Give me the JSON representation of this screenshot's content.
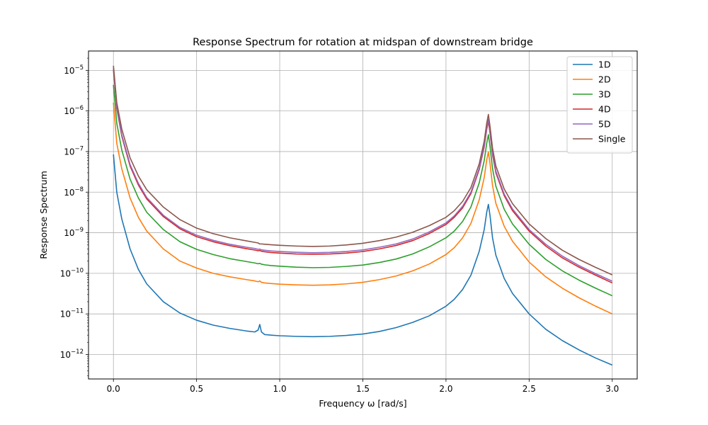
{
  "chart_data": {
    "type": "line",
    "title": "Response Spectrum for rotation at midspan of downstream bridge",
    "xlabel": "Frequency ω [rad/s]",
    "ylabel": "Response Spectrum",
    "xlim": [
      -0.15,
      3.15
    ],
    "ylim": [
      2.5e-13,
      3e-05
    ],
    "yscale": "log",
    "grid": true,
    "legend_position": "top-right",
    "x_ticks": [
      {
        "value": 0.0,
        "label": "0.0"
      },
      {
        "value": 0.5,
        "label": "0.5"
      },
      {
        "value": 1.0,
        "label": "1.0"
      },
      {
        "value": 1.5,
        "label": "1.5"
      },
      {
        "value": 2.0,
        "label": "2.0"
      },
      {
        "value": 2.5,
        "label": "2.5"
      },
      {
        "value": 3.0,
        "label": "3.0"
      }
    ],
    "y_ticks": [
      {
        "value": 1e-12,
        "base": "10",
        "exp": "−12"
      },
      {
        "value": 1e-11,
        "base": "10",
        "exp": "−11"
      },
      {
        "value": 1e-10,
        "base": "10",
        "exp": "−10"
      },
      {
        "value": 1e-09,
        "base": "10",
        "exp": "−9"
      },
      {
        "value": 1e-08,
        "base": "10",
        "exp": "−8"
      },
      {
        "value": 1e-07,
        "base": "10",
        "exp": "−7"
      },
      {
        "value": 1e-06,
        "base": "10",
        "exp": "−6"
      },
      {
        "value": 1e-05,
        "base": "10",
        "exp": "−5"
      }
    ],
    "x": [
      0.0,
      0.02,
      0.05,
      0.1,
      0.15,
      0.2,
      0.3,
      0.4,
      0.5,
      0.6,
      0.7,
      0.8,
      0.85,
      0.87,
      0.88,
      0.89,
      0.91,
      0.95,
      1.0,
      1.1,
      1.2,
      1.3,
      1.4,
      1.5,
      1.6,
      1.7,
      1.8,
      1.9,
      2.0,
      2.05,
      2.1,
      2.15,
      2.2,
      2.23,
      2.245,
      2.255,
      2.265,
      2.28,
      2.3,
      2.35,
      2.4,
      2.5,
      2.6,
      2.7,
      2.8,
      2.9,
      3.0
    ],
    "series": [
      {
        "name": "1D",
        "color": "#1f77b4",
        "values": [
          8.5e-08,
          1e-08,
          2.2e-09,
          4e-10,
          1.25e-10,
          5.5e-11,
          2e-11,
          1.05e-11,
          7e-12,
          5.3e-12,
          4.4e-12,
          3.8e-12,
          3.6e-12,
          4e-12,
          5.5e-12,
          3.6e-12,
          3.1e-12,
          3e-12,
          2.9e-12,
          2.8e-12,
          2.75e-12,
          2.8e-12,
          2.95e-12,
          3.2e-12,
          3.7e-12,
          4.6e-12,
          6.2e-12,
          9e-12,
          1.55e-11,
          2.3e-11,
          4e-11,
          9e-11,
          3.5e-10,
          1.2e-09,
          3.2e-09,
          5e-09,
          2.6e-09,
          7.5e-10,
          2.8e-10,
          7.5e-11,
          3.2e-11,
          1e-11,
          4.2e-12,
          2.2e-12,
          1.3e-12,
          8.2e-13,
          5.5e-13
        ]
      },
      {
        "name": "2D",
        "color": "#ff7f0e",
        "values": [
          1.6e-06,
          1.6e-07,
          3.8e-08,
          7.2e-09,
          2.4e-09,
          1.1e-09,
          4e-10,
          2e-10,
          1.35e-10,
          1e-10,
          8.2e-11,
          7e-11,
          6.5e-11,
          6.2e-11,
          6.5e-11,
          6e-11,
          5.8e-11,
          5.6e-11,
          5.4e-11,
          5.2e-11,
          5.1e-11,
          5.2e-11,
          5.5e-11,
          6e-11,
          7e-11,
          8.6e-11,
          1.15e-10,
          1.7e-10,
          2.9e-10,
          4.3e-10,
          7.5e-10,
          1.7e-09,
          6.5e-09,
          2.3e-08,
          6.2e-08,
          9.8e-08,
          5e-08,
          1.45e-08,
          5.3e-09,
          1.45e-09,
          6.2e-10,
          1.9e-10,
          8.2e-11,
          4.3e-11,
          2.5e-11,
          1.55e-11,
          1e-11
        ]
      },
      {
        "name": "3D",
        "color": "#2ca02c",
        "values": [
          4.4e-06,
          5e-07,
          1.1e-07,
          2.1e-08,
          7.2e-09,
          3.2e-09,
          1.2e-09,
          6e-10,
          3.9e-10,
          2.9e-10,
          2.3e-10,
          1.95e-10,
          1.8e-10,
          1.72e-10,
          1.76e-10,
          1.68e-10,
          1.62e-10,
          1.55e-10,
          1.5e-10,
          1.42e-10,
          1.38e-10,
          1.4e-10,
          1.48e-10,
          1.6e-10,
          1.85e-10,
          2.25e-10,
          3e-10,
          4.5e-10,
          7.5e-10,
          1.1e-09,
          1.9e-09,
          4.3e-09,
          1.7e-08,
          6e-08,
          1.6e-07,
          2.6e-07,
          1.3e-07,
          3.8e-08,
          1.4e-08,
          3.8e-09,
          1.65e-09,
          5.2e-10,
          2.2e-10,
          1.15e-10,
          6.8e-11,
          4.3e-11,
          2.8e-11
        ]
      },
      {
        "name": "4D",
        "color": "#d62728",
        "values": [
          1.05e-05,
          1.15e-06,
          2.4e-07,
          4.4e-08,
          1.5e-08,
          6.8e-09,
          2.5e-09,
          1.25e-09,
          8e-10,
          6e-10,
          4.8e-10,
          4.05e-10,
          3.75e-10,
          3.6e-10,
          3.65e-10,
          3.5e-10,
          3.4e-10,
          3.25e-10,
          3.15e-10,
          3e-10,
          2.95e-10,
          3e-10,
          3.15e-10,
          3.45e-10,
          4e-10,
          4.85e-10,
          6.4e-10,
          9.6e-10,
          1.6e-09,
          2.4e-09,
          4.1e-09,
          9.2e-09,
          3.6e-08,
          1.3e-07,
          3.5e-07,
          5.6e-07,
          2.8e-07,
          8.2e-08,
          3e-08,
          8.2e-09,
          3.5e-09,
          1.1e-09,
          4.7e-10,
          2.4e-10,
          1.42e-10,
          9e-11,
          5.8e-11
        ]
      },
      {
        "name": "5D",
        "color": "#9467bd",
        "values": [
          1.15e-05,
          1.25e-06,
          2.6e-07,
          4.8e-08,
          1.65e-08,
          7.4e-09,
          2.7e-09,
          1.35e-09,
          8.7e-10,
          6.5e-10,
          5.2e-10,
          4.4e-10,
          4.1e-10,
          3.9e-10,
          3.95e-10,
          3.8e-10,
          3.7e-10,
          3.55e-10,
          3.45e-10,
          3.3e-10,
          3.22e-10,
          3.28e-10,
          3.45e-10,
          3.78e-10,
          4.4e-10,
          5.3e-10,
          7e-10,
          1.05e-09,
          1.75e-09,
          2.6e-09,
          4.5e-09,
          1e-08,
          3.9e-08,
          1.4e-07,
          3.8e-07,
          6.2e-07,
          3.1e-07,
          9e-08,
          3.3e-08,
          9e-09,
          3.85e-09,
          1.2e-09,
          5.2e-10,
          2.65e-10,
          1.55e-10,
          9.8e-11,
          6.4e-11
        ]
      },
      {
        "name": "Single",
        "color": "#8c564b",
        "values": [
          1.3e-05,
          1.6e-06,
          3.6e-07,
          7e-08,
          2.5e-08,
          1.15e-08,
          4.3e-09,
          2.1e-09,
          1.3e-09,
          9.5e-10,
          7.5e-10,
          6.3e-10,
          5.8e-10,
          5.6e-10,
          5.3e-10,
          5.3e-10,
          5.2e-10,
          5.05e-10,
          4.9e-10,
          4.7e-10,
          4.6e-10,
          4.7e-10,
          5e-10,
          5.5e-10,
          6.4e-10,
          7.8e-10,
          1.03e-09,
          1.5e-09,
          2.4e-09,
          3.5e-09,
          5.9e-09,
          1.3e-08,
          5e-08,
          1.8e-07,
          5e-07,
          8.2e-07,
          4.1e-07,
          1.2e-07,
          4.4e-08,
          1.2e-08,
          5.2e-09,
          1.65e-09,
          7.2e-10,
          3.7e-10,
          2.2e-10,
          1.4e-10,
          9.2e-11
        ]
      }
    ]
  }
}
